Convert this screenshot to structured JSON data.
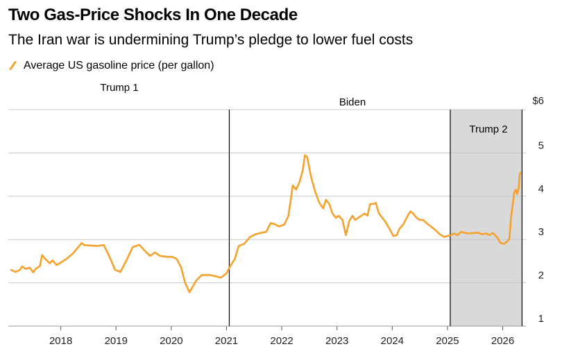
{
  "title": "Two Gas-Price Shocks In One Decade",
  "subtitle": "The Iran war is undermining Trump’s pledge to lower fuel costs",
  "legend_label": "Average US gasoline price (per gallon)",
  "line_color": "#f7a12c",
  "shade_color": "#d9d9d9",
  "legend_icon": "slash-line-icon",
  "chart_data": {
    "type": "line",
    "title": "Two Gas-Price Shocks In One Decade",
    "subtitle": "The Iran war is undermining Trump’s pledge to lower fuel costs",
    "xlabel": "",
    "ylabel": "",
    "x_range": [
      2017.05,
      2026.42
    ],
    "ylim": [
      1,
      6
    ],
    "y_ticks": [
      1,
      2,
      3,
      4,
      5,
      6
    ],
    "y_tick_labels": [
      "1",
      "2",
      "3",
      "4",
      "5",
      "$6"
    ],
    "x_ticks": [
      2018,
      2019,
      2020,
      2021,
      2022,
      2023,
      2024,
      2025,
      2026
    ],
    "x_tick_labels": [
      "2018",
      "2019",
      "2020",
      "2021",
      "2022",
      "2023",
      "2024",
      "2025",
      "2026"
    ],
    "grid": true,
    "y_axis_position": "right",
    "legend_position": "top-left",
    "period_labels": [
      {
        "label": "Trump 1",
        "start": 2017.05,
        "end": 2021.05
      },
      {
        "label": "Biden",
        "start": 2021.05,
        "end": 2025.05
      },
      {
        "label": "Trump 2",
        "start": 2025.05,
        "end": 2026.35
      }
    ],
    "dividers": [
      2021.05,
      2025.05,
      2026.35
    ],
    "shaded_region": [
      2025.05,
      2026.35
    ],
    "series": [
      {
        "name": "Average US gasoline price (per gallon)",
        "x": [
          2017.1,
          2017.18,
          2017.26,
          2017.3,
          2017.36,
          2017.44,
          2017.5,
          2017.55,
          2017.62,
          2017.66,
          2017.72,
          2017.8,
          2017.85,
          2017.92,
          2017.98,
          2018.1,
          2018.22,
          2018.38,
          2018.42,
          2018.55,
          2018.65,
          2018.78,
          2018.9,
          2018.98,
          2019.08,
          2019.2,
          2019.3,
          2019.42,
          2019.55,
          2019.62,
          2019.7,
          2019.8,
          2019.92,
          2020.02,
          2020.1,
          2020.18,
          2020.25,
          2020.33,
          2020.45,
          2020.55,
          2020.7,
          2020.8,
          2020.9,
          2021.0,
          2021.05,
          2021.15,
          2021.22,
          2021.32,
          2021.42,
          2021.52,
          2021.62,
          2021.72,
          2021.8,
          2021.88,
          2021.95,
          2022.05,
          2022.12,
          2022.2,
          2022.26,
          2022.32,
          2022.38,
          2022.42,
          2022.46,
          2022.53,
          2022.6,
          2022.68,
          2022.75,
          2022.8,
          2022.86,
          2022.92,
          2022.98,
          2023.03,
          2023.1,
          2023.16,
          2023.22,
          2023.28,
          2023.33,
          2023.38,
          2023.44,
          2023.5,
          2023.55,
          2023.6,
          2023.66,
          2023.7,
          2023.76,
          2023.82,
          2023.88,
          2023.95,
          2024.02,
          2024.08,
          2024.13,
          2024.2,
          2024.28,
          2024.33,
          2024.38,
          2024.44,
          2024.5,
          2024.56,
          2024.62,
          2024.7,
          2024.78,
          2024.86,
          2024.94,
          2025.0,
          2025.06,
          2025.12,
          2025.18,
          2025.25,
          2025.32,
          2025.4,
          2025.48,
          2025.55,
          2025.62,
          2025.7,
          2025.76,
          2025.82,
          2025.9,
          2025.96,
          2026.02,
          2026.08,
          2026.12,
          2026.15,
          2026.18,
          2026.21,
          2026.24,
          2026.26,
          2026.29,
          2026.31,
          2026.33
        ],
        "values": [
          2.3,
          2.25,
          2.3,
          2.38,
          2.32,
          2.35,
          2.24,
          2.33,
          2.38,
          2.64,
          2.55,
          2.45,
          2.52,
          2.41,
          2.45,
          2.55,
          2.68,
          2.92,
          2.87,
          2.86,
          2.85,
          2.87,
          2.55,
          2.3,
          2.25,
          2.55,
          2.82,
          2.88,
          2.7,
          2.62,
          2.7,
          2.62,
          2.6,
          2.6,
          2.55,
          2.35,
          2.0,
          1.78,
          2.05,
          2.18,
          2.18,
          2.15,
          2.12,
          2.22,
          2.35,
          2.55,
          2.85,
          2.9,
          3.05,
          3.12,
          3.15,
          3.18,
          3.38,
          3.35,
          3.3,
          3.35,
          3.55,
          4.25,
          4.15,
          4.32,
          4.6,
          4.95,
          4.9,
          4.45,
          4.12,
          3.85,
          3.72,
          3.92,
          3.82,
          3.6,
          3.5,
          3.55,
          3.45,
          3.1,
          3.42,
          3.55,
          3.45,
          3.5,
          3.55,
          3.6,
          3.55,
          3.82,
          3.82,
          3.85,
          3.6,
          3.5,
          3.4,
          3.25,
          3.08,
          3.1,
          3.25,
          3.35,
          3.55,
          3.65,
          3.6,
          3.5,
          3.45,
          3.45,
          3.38,
          3.3,
          3.22,
          3.12,
          3.06,
          3.08,
          3.1,
          3.14,
          3.1,
          3.18,
          3.15,
          3.14,
          3.15,
          3.16,
          3.12,
          3.14,
          3.1,
          3.15,
          3.05,
          2.92,
          2.9,
          2.95,
          3.02,
          3.5,
          3.8,
          4.1,
          4.15,
          4.05,
          4.2,
          4.52,
          4.55
        ]
      }
    ]
  }
}
